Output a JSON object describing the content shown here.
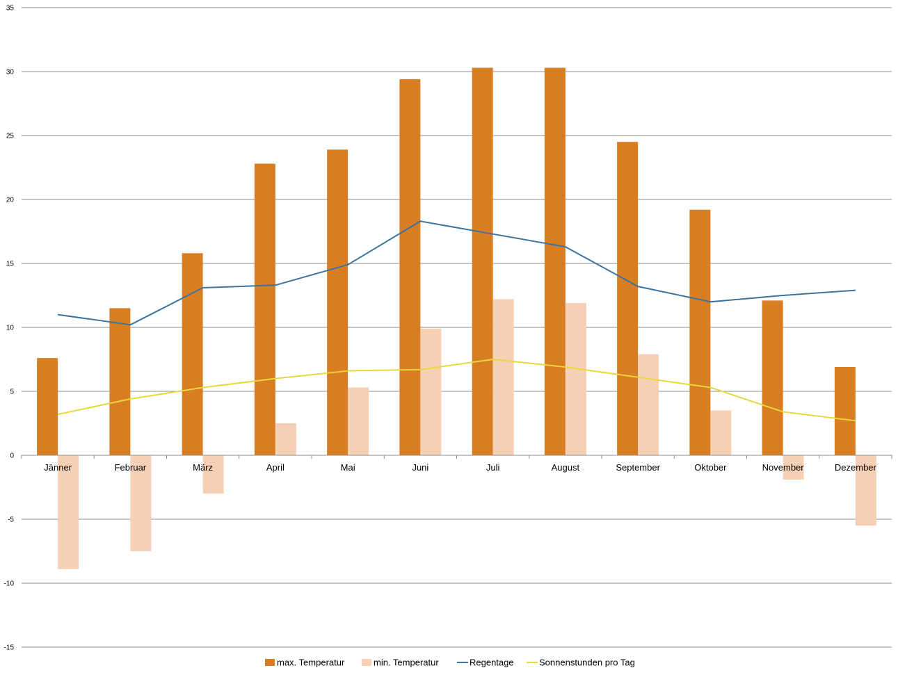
{
  "chart_data": {
    "type": "bar",
    "title": "",
    "xlabel": "",
    "ylabel": "",
    "ylim": [
      -15,
      35
    ],
    "yticks": [
      35,
      30,
      25,
      20,
      15,
      10,
      5,
      0,
      -5,
      -10,
      -15
    ],
    "grid": true,
    "legend_position": "bottom",
    "categories": [
      "Jänner",
      "Februar",
      "März",
      "April",
      "Mai",
      "Juni",
      "Juli",
      "August",
      "September",
      "Oktober",
      "November",
      "Dezember"
    ],
    "series": [
      {
        "name": "max. Temperatur",
        "kind": "bar",
        "color": "#d97d22",
        "values": [
          7.6,
          11.5,
          15.8,
          22.8,
          23.9,
          29.4,
          30.3,
          30.3,
          24.5,
          19.2,
          12.1,
          6.9
        ]
      },
      {
        "name": "min. Temperatur",
        "kind": "bar",
        "color": "#f5d0b5",
        "values": [
          -8.9,
          -7.5,
          -3.0,
          2.5,
          5.3,
          9.9,
          12.2,
          11.9,
          7.9,
          3.5,
          -1.9,
          -5.5
        ]
      },
      {
        "name": "Regentage",
        "kind": "line",
        "color": "#3a73a0",
        "values": [
          11.0,
          10.2,
          13.1,
          13.3,
          14.9,
          18.3,
          17.3,
          16.3,
          13.2,
          12.0,
          12.5,
          12.9
        ]
      },
      {
        "name": "Sonnenstunden pro Tag",
        "kind": "line",
        "color": "#e6d83a",
        "values": [
          3.2,
          4.4,
          5.3,
          6.0,
          6.6,
          6.7,
          7.5,
          6.9,
          6.1,
          5.3,
          3.4,
          2.7
        ]
      }
    ]
  }
}
